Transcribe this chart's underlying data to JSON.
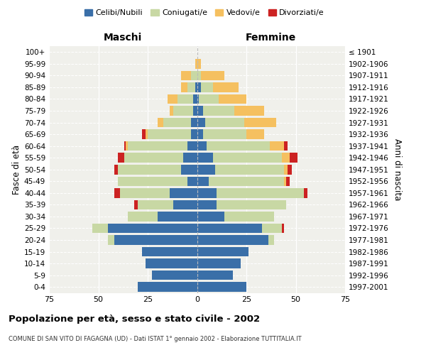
{
  "age_groups": [
    "0-4",
    "5-9",
    "10-14",
    "15-19",
    "20-24",
    "25-29",
    "30-34",
    "35-39",
    "40-44",
    "45-49",
    "50-54",
    "55-59",
    "60-64",
    "65-69",
    "70-74",
    "75-79",
    "80-84",
    "85-89",
    "90-94",
    "95-99",
    "100+"
  ],
  "birth_years": [
    "1997-2001",
    "1992-1996",
    "1987-1991",
    "1982-1986",
    "1977-1981",
    "1972-1976",
    "1967-1971",
    "1962-1966",
    "1957-1961",
    "1952-1956",
    "1947-1951",
    "1942-1946",
    "1937-1941",
    "1932-1936",
    "1927-1931",
    "1922-1926",
    "1917-1921",
    "1912-1916",
    "1907-1911",
    "1902-1906",
    "≤ 1901"
  ],
  "male_celibi": [
    30,
    23,
    26,
    28,
    42,
    45,
    20,
    12,
    14,
    5,
    8,
    7,
    5,
    3,
    3,
    2,
    2,
    1,
    0,
    0,
    0
  ],
  "male_coniugati": [
    0,
    0,
    0,
    0,
    3,
    8,
    15,
    18,
    25,
    35,
    32,
    30,
    30,
    22,
    14,
    10,
    8,
    4,
    3,
    0,
    0
  ],
  "male_vedovi": [
    0,
    0,
    0,
    0,
    0,
    0,
    0,
    0,
    0,
    0,
    0,
    0,
    1,
    1,
    3,
    2,
    5,
    3,
    5,
    1,
    0
  ],
  "male_divorziati": [
    0,
    0,
    0,
    0,
    0,
    0,
    0,
    2,
    3,
    0,
    2,
    3,
    1,
    2,
    0,
    0,
    0,
    0,
    0,
    0,
    0
  ],
  "female_celibi": [
    25,
    18,
    22,
    26,
    36,
    33,
    14,
    10,
    10,
    6,
    9,
    8,
    5,
    3,
    4,
    3,
    1,
    2,
    0,
    0,
    0
  ],
  "female_coniugati": [
    0,
    0,
    0,
    0,
    3,
    10,
    25,
    35,
    44,
    38,
    35,
    35,
    32,
    22,
    20,
    16,
    10,
    6,
    2,
    0,
    0
  ],
  "female_vedovi": [
    0,
    0,
    0,
    0,
    0,
    0,
    0,
    0,
    0,
    1,
    2,
    4,
    7,
    9,
    16,
    15,
    14,
    13,
    12,
    2,
    0
  ],
  "female_divorziati": [
    0,
    0,
    0,
    0,
    0,
    1,
    0,
    0,
    2,
    2,
    2,
    4,
    2,
    0,
    0,
    0,
    0,
    0,
    0,
    0,
    0
  ],
  "color_celibi": "#3a6fa8",
  "color_coniugati": "#c8d8a4",
  "color_vedovi": "#f5c060",
  "color_divorziati": "#cc2222",
  "xlim": 75,
  "title_main": "Popolazione per età, sesso e stato civile - 2002",
  "title_sub": "COMUNE DI SAN VITO DI FAGAGNA (UD) - Dati ISTAT 1° gennaio 2002 - Elaborazione TUTTITALIA.IT",
  "ylabel_left": "Fasce di età",
  "ylabel_right": "Anni di nascita",
  "xlabel_left": "Maschi",
  "xlabel_right": "Femmine",
  "bg_color": "#ffffff",
  "plot_bg": "#f0f0eb",
  "legend_labels": [
    "Celibi/Nubili",
    "Coniugati/e",
    "Vedovi/e",
    "Divorziati/e"
  ]
}
